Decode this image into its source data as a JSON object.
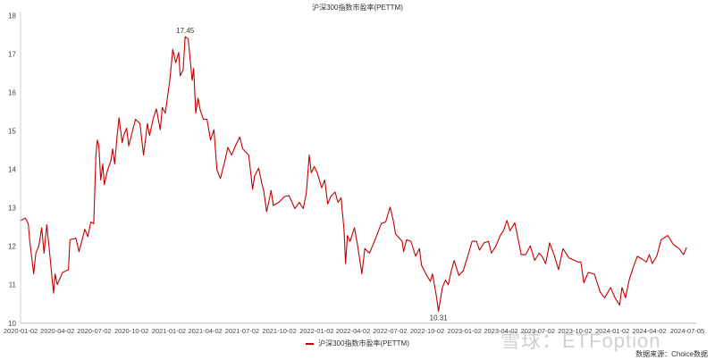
{
  "chart_data": {
    "type": "line",
    "title": "沪深300指数市盈率(PETTM)",
    "xlabel": "",
    "ylabel": "",
    "x_unit": "decimal year",
    "ylim": [
      10,
      18
    ],
    "yticks": [
      10,
      11,
      12,
      13,
      14,
      15,
      16,
      17,
      18
    ],
    "xticks": [
      "2020-01-02",
      "2020-04-02",
      "2020-07-02",
      "2020-10-02",
      "2021-01-02",
      "2021-04-02",
      "2021-07-02",
      "2021-10-02",
      "2022-01-02",
      "2022-04-02",
      "2022-07-02",
      "2022-10-02",
      "2023-01-02",
      "2023-04-02",
      "2023-07-02",
      "2023-10-02",
      "2024-01-02",
      "2024-04-02",
      "2024-07-05"
    ],
    "grid": false,
    "legend_position": "bottom-center",
    "series": [
      {
        "name": "沪深300指数市盈率(PETTM)",
        "color": "#c00000",
        "x": [
          2020.002,
          2020.032,
          2020.052,
          2020.062,
          2020.089,
          2020.103,
          2020.123,
          2020.143,
          2020.159,
          2020.177,
          2020.193,
          2020.223,
          2020.234,
          2020.248,
          2020.284,
          2020.324,
          2020.334,
          2020.374,
          2020.395,
          2020.435,
          2020.455,
          2020.475,
          2020.495,
          2020.509,
          2020.519,
          2020.529,
          2020.542,
          2020.556,
          2020.566,
          2020.586,
          2020.61,
          2020.622,
          2020.636,
          2020.652,
          2020.666,
          2020.687,
          2020.697,
          2020.717,
          2020.731,
          2020.777,
          2020.807,
          2020.831,
          2020.858,
          2020.872,
          2020.898,
          2020.918,
          2020.944,
          2020.958,
          2020.978,
          2021.009,
          2021.029,
          2021.049,
          2021.069,
          2021.079,
          2021.099,
          2021.113,
          2021.133,
          2021.16,
          2021.17,
          2021.184,
          2021.2,
          2021.214,
          2021.236,
          2021.26,
          2021.284,
          2021.307,
          2021.327,
          2021.351,
          2021.381,
          2021.401,
          2021.427,
          2021.452,
          2021.482,
          2021.502,
          2021.542,
          2021.568,
          2021.582,
          2021.609,
          2021.633,
          2021.643,
          2021.663,
          2021.679,
          2021.693,
          2021.709,
          2021.744,
          2021.784,
          2021.814,
          2021.854,
          2021.884,
          2021.911,
          2021.931,
          2021.951,
          2021.965,
          2021.985,
          2022.005,
          2022.035,
          2022.056,
          2022.076,
          2022.096,
          2022.126,
          2022.146,
          2022.166,
          2022.186,
          2022.197,
          2022.209,
          2022.227,
          2022.257,
          2022.277,
          2022.307,
          2022.327,
          2022.358,
          2022.388,
          2022.438,
          2022.468,
          2022.498,
          2022.519,
          2022.535,
          2022.579,
          2022.589,
          2022.609,
          2022.639,
          2022.67,
          2022.696,
          2022.71,
          2022.74,
          2022.77,
          2022.784,
          2022.811,
          2022.825,
          2022.851,
          2022.871,
          2022.891,
          2022.911,
          2022.931,
          2022.962,
          2022.992,
          2023.022,
          2023.052,
          2023.082,
          2023.102,
          2023.133,
          2023.163,
          2023.183,
          2023.213,
          2023.243,
          2023.263,
          2023.288,
          2023.308,
          2023.34,
          2023.364,
          2023.384,
          2023.414,
          2023.445,
          2023.475,
          2023.505,
          2023.525,
          2023.549,
          2023.576,
          2023.606,
          2023.636,
          2023.666,
          2023.706,
          2023.767,
          2023.787,
          2023.807,
          2023.837,
          2023.878,
          2023.918,
          2023.948,
          2023.988,
          2024.018,
          2024.049,
          2024.065,
          2024.089,
          2024.113,
          2024.139,
          2024.169,
          2024.2,
          2024.23,
          2024.25,
          2024.27,
          2024.3,
          2024.33,
          2024.375,
          2024.411,
          2024.451,
          2024.481,
          2024.502
        ],
        "values": [
          12.67,
          12.73,
          12.59,
          12.13,
          11.28,
          11.82,
          12.01,
          12.48,
          11.82,
          12.56,
          11.98,
          10.78,
          11.28,
          11.0,
          11.32,
          11.39,
          12.17,
          12.21,
          11.86,
          12.44,
          12.25,
          12.63,
          12.59,
          14.37,
          14.76,
          14.61,
          13.72,
          14.14,
          13.6,
          13.95,
          14.22,
          14.53,
          14.14,
          14.84,
          15.34,
          14.69,
          14.88,
          15.07,
          14.61,
          15.3,
          15.19,
          14.37,
          15.19,
          14.88,
          15.34,
          15.57,
          15.03,
          15.61,
          15.46,
          16.31,
          17.12,
          16.77,
          17.04,
          16.43,
          16.58,
          17.45,
          17.39,
          16.31,
          16.62,
          15.46,
          15.85,
          15.54,
          15.3,
          15.3,
          14.76,
          15.03,
          13.99,
          13.76,
          14.22,
          14.57,
          14.37,
          14.61,
          14.84,
          14.53,
          14.37,
          13.48,
          13.83,
          14.03,
          13.6,
          13.45,
          12.9,
          13.17,
          13.45,
          13.06,
          13.14,
          13.29,
          13.32,
          12.98,
          13.14,
          12.98,
          13.37,
          14.37,
          13.91,
          14.07,
          13.91,
          13.52,
          13.72,
          13.1,
          13.29,
          13.41,
          13.14,
          13.26,
          12.44,
          11.55,
          12.28,
          12.13,
          12.48,
          12.05,
          11.28,
          11.94,
          11.82,
          12.09,
          12.59,
          12.63,
          13.02,
          12.67,
          12.32,
          12.13,
          11.86,
          12.17,
          12.13,
          11.74,
          11.94,
          11.51,
          11.28,
          11.09,
          11.28,
          10.7,
          10.31,
          10.93,
          11.12,
          11.0,
          11.36,
          11.63,
          11.24,
          11.36,
          11.74,
          12.13,
          12.13,
          11.9,
          12.09,
          12.13,
          11.82,
          12.01,
          12.28,
          12.4,
          12.67,
          12.4,
          12.61,
          12.17,
          11.78,
          11.78,
          12.01,
          11.63,
          11.82,
          11.74,
          11.55,
          12.09,
          11.78,
          11.39,
          11.94,
          11.7,
          11.59,
          11.59,
          11.05,
          11.32,
          11.28,
          10.81,
          10.66,
          10.93,
          10.66,
          10.47,
          10.93,
          10.66,
          11.12,
          11.43,
          11.74,
          11.67,
          11.59,
          11.78,
          11.55,
          11.74,
          12.17,
          12.28,
          12.05,
          11.94,
          11.78,
          11.97
        ]
      }
    ],
    "annotations": [
      {
        "label": "17.45",
        "x": 2021.113,
        "y": 17.45,
        "position": "above"
      },
      {
        "label": "10.31",
        "x": 2022.825,
        "y": 10.31,
        "position": "below"
      }
    ]
  },
  "legend": {
    "label": "沪深300指数市盈率(PETTM)"
  },
  "source": "数据来源：Choice数据",
  "watermark": "雪球：ETFoption"
}
